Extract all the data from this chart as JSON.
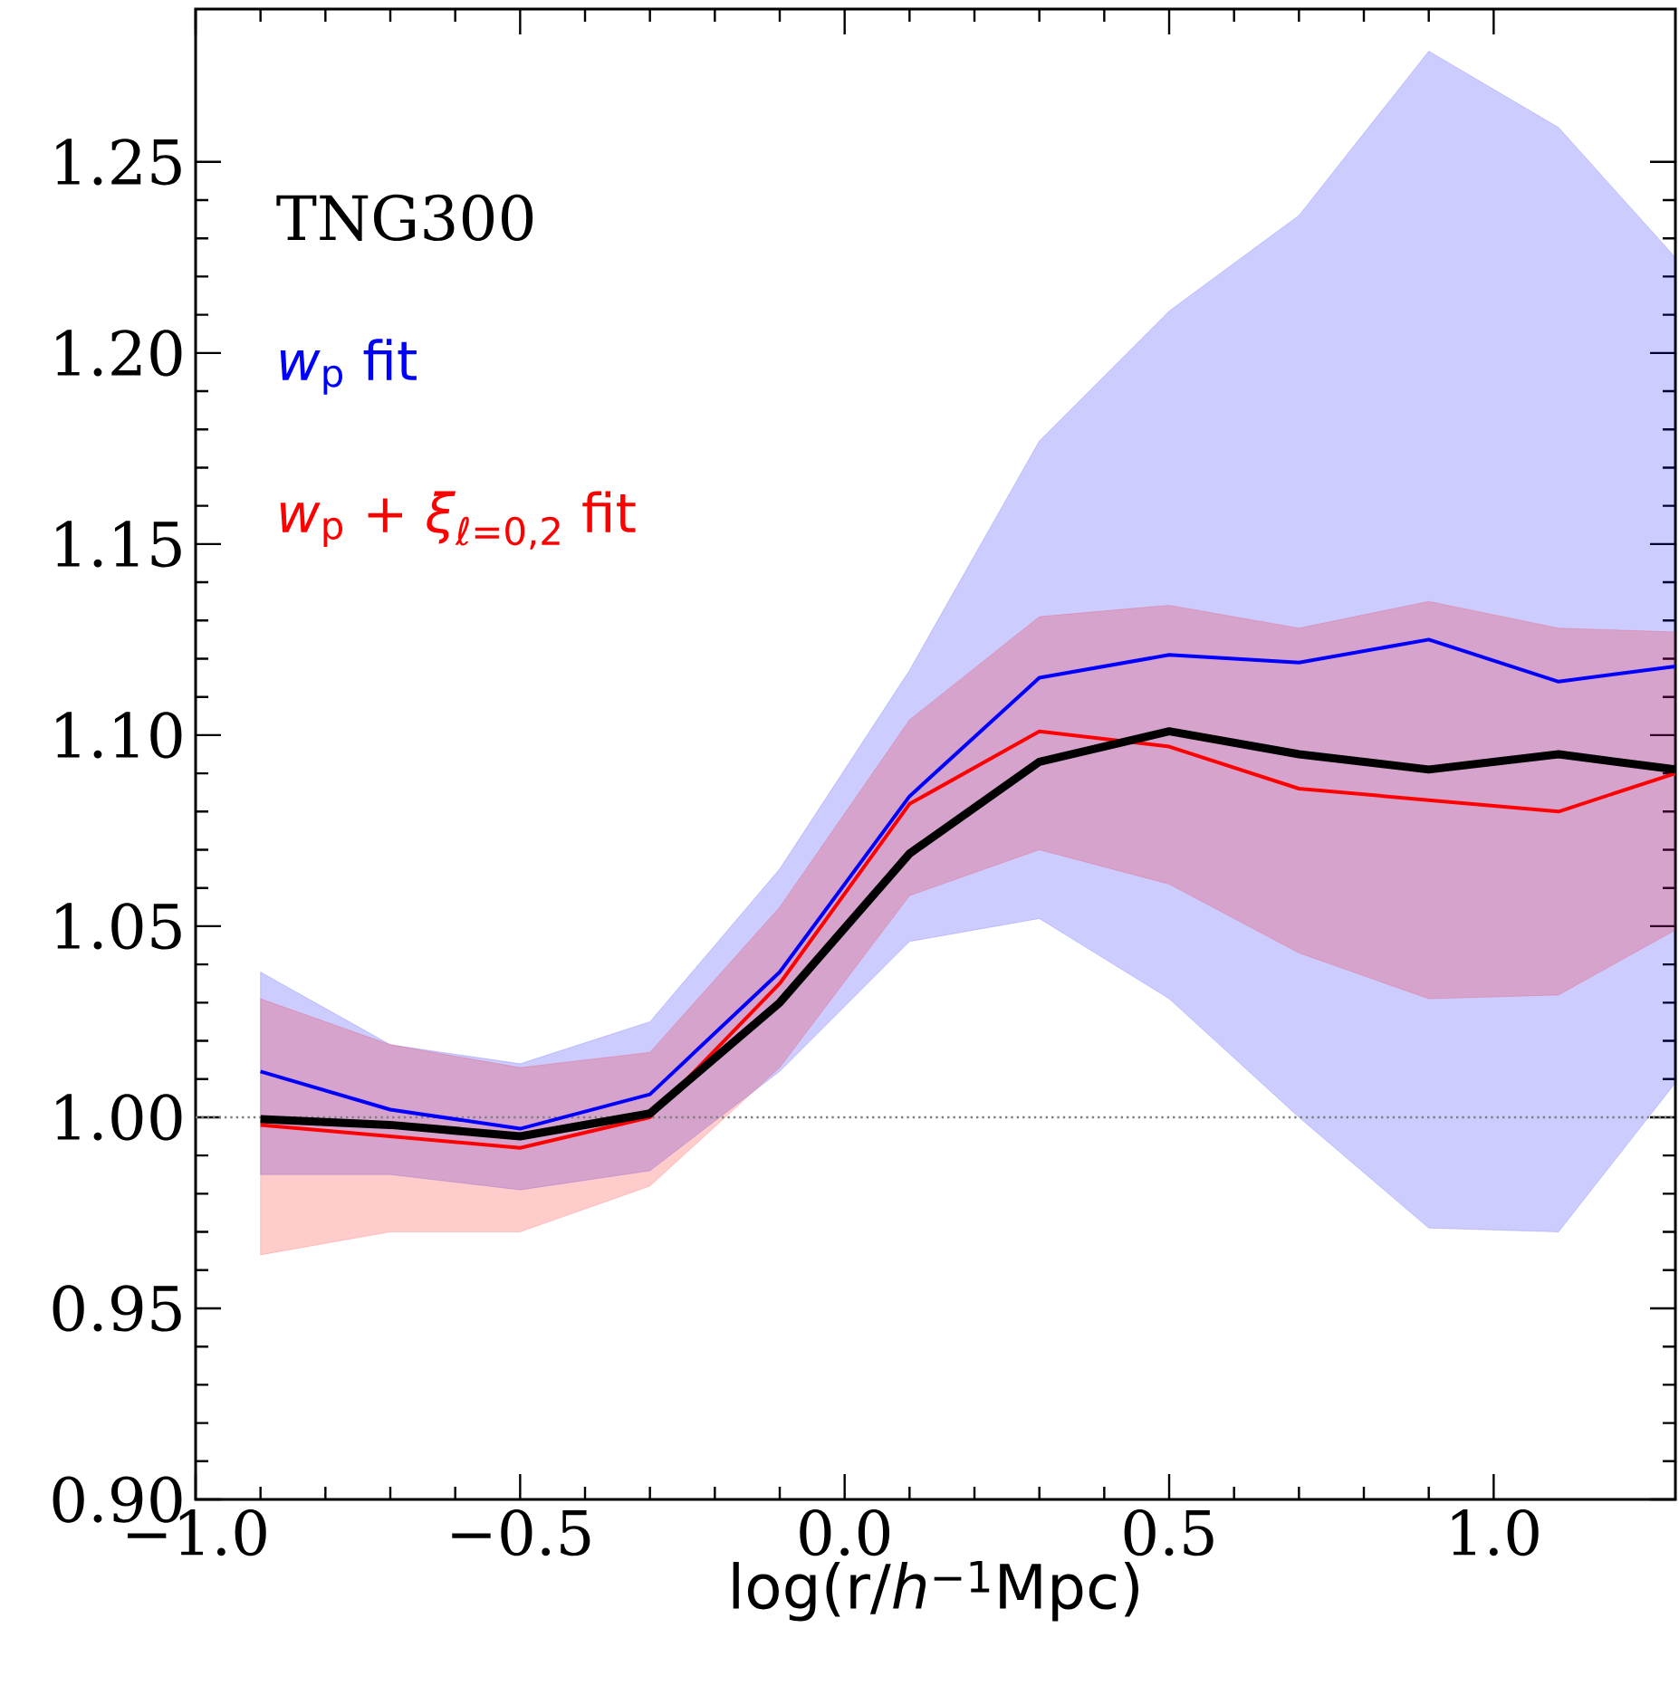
{
  "chart_data": {
    "type": "line",
    "x": [
      -0.9,
      -0.7,
      -0.5,
      -0.3,
      -0.1,
      0.1,
      0.3,
      0.5,
      0.7,
      0.9,
      1.1,
      1.28
    ],
    "xlim": [
      -1.0,
      1.28
    ],
    "ylim": [
      0.9,
      1.29
    ],
    "xticks": [
      {
        "value": -1.0,
        "label": "−1.0"
      },
      {
        "value": -0.5,
        "label": "−0.5"
      },
      {
        "value": 0.0,
        "label": "0.0"
      },
      {
        "value": 0.5,
        "label": "0.5"
      },
      {
        "value": 1.0,
        "label": "1.0"
      }
    ],
    "yticks": [
      {
        "value": 0.9,
        "label": "0.90"
      },
      {
        "value": 0.95,
        "label": "0.95"
      },
      {
        "value": 1.0,
        "label": "1.00"
      },
      {
        "value": 1.05,
        "label": "1.05"
      },
      {
        "value": 1.1,
        "label": "1.10"
      },
      {
        "value": 1.15,
        "label": "1.15"
      },
      {
        "value": 1.2,
        "label": "1.20"
      },
      {
        "value": 1.25,
        "label": "1.25"
      }
    ],
    "xlabel": "log(r/*h*$^{−1}$Mpc)",
    "annotations": [
      "TNG300"
    ],
    "ref_lines": [
      {
        "axis": "y",
        "value": 1.0,
        "color": "#808080",
        "line_style": "dotted"
      }
    ],
    "series": [
      {
        "name": "*w*$_{p}$ fit",
        "color": "#0000ff",
        "values": [
          1.012,
          1.002,
          0.997,
          1.006,
          1.038,
          1.084,
          1.115,
          1.121,
          1.119,
          1.125,
          1.114,
          1.118
        ],
        "lower": [
          0.985,
          0.985,
          0.981,
          0.986,
          1.012,
          1.046,
          1.052,
          1.031,
          1.0,
          0.971,
          0.97,
          1.009
        ],
        "upper": [
          1.038,
          1.019,
          1.014,
          1.025,
          1.065,
          1.117,
          1.177,
          1.211,
          1.236,
          1.279,
          1.259,
          1.225
        ]
      },
      {
        "name": "*w*$_{p}$ + *ξ*$_{ℓ=0,2}$ fit",
        "color": "#ff0000",
        "values": [
          0.998,
          0.995,
          0.992,
          1.0,
          1.035,
          1.082,
          1.101,
          1.097,
          1.086,
          1.083,
          1.08,
          1.09
        ],
        "lower": [
          0.964,
          0.97,
          0.97,
          0.982,
          1.013,
          1.058,
          1.07,
          1.061,
          1.043,
          1.031,
          1.032,
          1.049
        ],
        "upper": [
          1.031,
          1.019,
          1.013,
          1.017,
          1.055,
          1.104,
          1.131,
          1.134,
          1.128,
          1.135,
          1.128,
          1.127
        ]
      },
      {
        "color": "#000000",
        "values": [
          0.9995,
          0.998,
          0.995,
          1.001,
          1.03,
          1.069,
          1.093,
          1.101,
          1.095,
          1.091,
          1.095,
          1.091
        ]
      }
    ]
  }
}
